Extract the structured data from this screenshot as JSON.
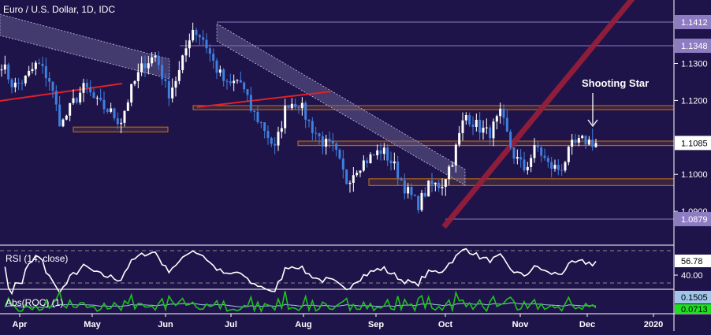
{
  "chart_data": {
    "type": "candlestick",
    "title": "Euro / U.S. Dollar, 1D, IDC",
    "annotation": "Shooting Star",
    "ylim": [
      1.0835,
      1.1465
    ],
    "y_ticks": [
      "1.1300",
      "1.1200",
      "1.1000",
      "1.0900"
    ],
    "x_ticks": [
      "Apr",
      "May",
      "Jun",
      "Jul",
      "Aug",
      "Sep",
      "Oct",
      "Nov",
      "Dec",
      "2020"
    ],
    "levels": [
      {
        "label": "1.1412",
        "value": 1.1412,
        "type": "resistance"
      },
      {
        "label": "1.1348",
        "value": 1.1348,
        "type": "resistance"
      },
      {
        "label": "1.0879",
        "value": 1.0879,
        "type": "support"
      }
    ],
    "last_price": {
      "label": "1.1085",
      "value": 1.1085
    },
    "zones": [
      [
        1.1175,
        1.1186
      ],
      [
        1.1078,
        1.109
      ],
      [
        1.097,
        1.0988
      ],
      [
        1.1115,
        1.1128
      ]
    ],
    "closes_approx": [
      1.1301,
      1.1237,
      1.1258,
      1.1301,
      1.1258,
      1.1131,
      1.1194,
      1.1237,
      1.1194,
      1.1173,
      1.1141,
      1.1237,
      1.1301,
      1.1322,
      1.1216,
      1.128,
      1.1397,
      1.1365,
      1.129,
      1.1237,
      1.1258,
      1.1173,
      1.1131,
      1.1067,
      1.1194,
      1.1194,
      1.1131,
      1.1088,
      1.1067,
      1.0981,
      1.1024,
      1.1045,
      1.1067,
      1.1024,
      1.096,
      1.0917,
      1.0971,
      1.0971,
      1.1045,
      1.1163,
      1.1131,
      1.1109,
      1.1163,
      1.1056,
      1.1013,
      1.1077,
      1.1024,
      1.1013,
      1.1077,
      1.1092,
      1.1085
    ],
    "rsi": {
      "label": "RSI (14, close)",
      "value_label": "56.78",
      "level_label": "40.00",
      "bands": [
        70,
        30
      ]
    },
    "roc": {
      "label": "Abs(ROC) (1)",
      "value_label": "0.1505",
      "ma_value_label": "0.0713"
    }
  },
  "colors": {
    "background": "#1f1449",
    "up": "#ffffff",
    "down": "#3f7fe0",
    "trend": "#e0202a",
    "level": "#8e7cc3",
    "zone": "#c8741a",
    "roc": "#1fc01f",
    "roc_ma": "#9fc5e8"
  }
}
